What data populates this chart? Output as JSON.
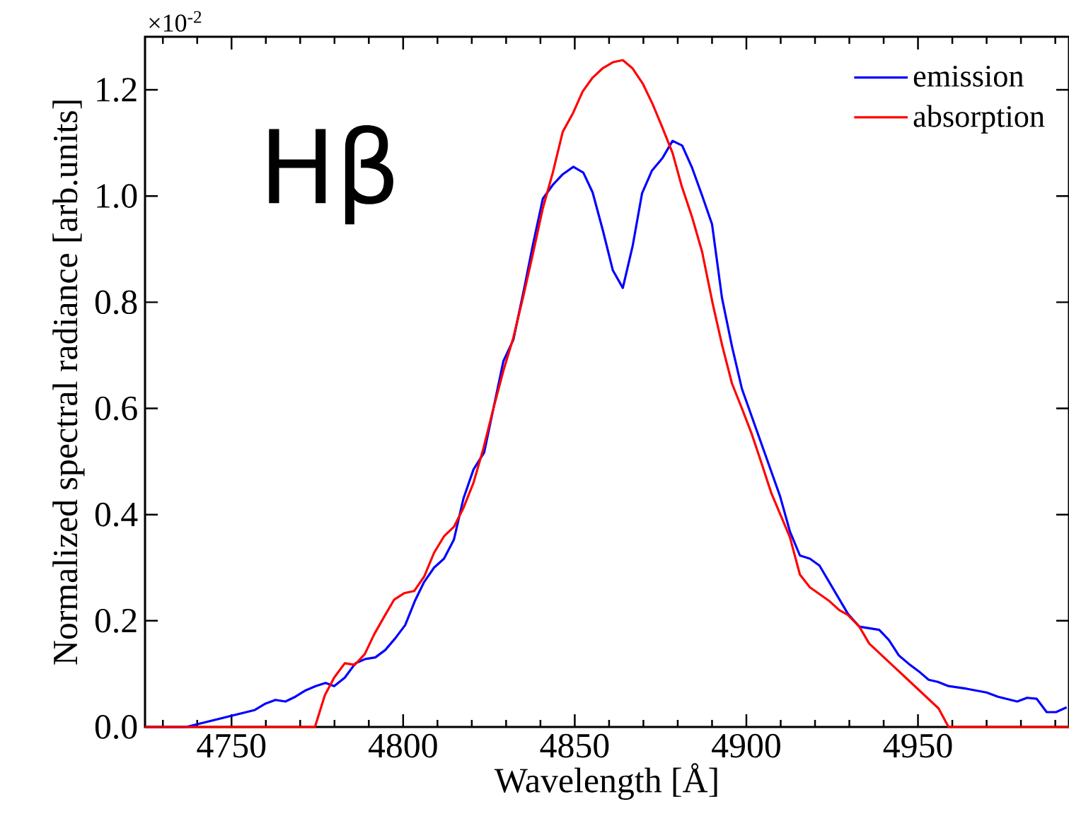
{
  "chart_data": {
    "type": "line",
    "xlabel": "Wavelength [Å]",
    "ylabel": "Normalized spectral radiance [arb.units]",
    "annotations": [
      "Hβ",
      "×10$^{-2}$"
    ],
    "xlim": [
      4724.8,
      4994
    ],
    "ylim": [
      0,
      1.3
    ],
    "xticks": [
      4750,
      4800,
      4850,
      4900,
      4950
    ],
    "yticks": [
      {
        "value": 0,
        "label": "0.0"
      },
      0.2,
      0.4,
      0.6,
      0.8,
      {
        "value": 1.0,
        "label": "1.0"
      },
      1.2
    ],
    "legend": "top right",
    "line_style": "solid",
    "grid": false,
    "series": [
      {
        "name": "emission",
        "color": "#0000ff",
        "x": [
          4724.8,
          4736.8,
          4756.8,
          4759.9,
          4762.8,
          4765.7,
          4768.6,
          4771.6,
          4774.5,
          4777.4,
          4779.9,
          4783,
          4786.1,
          4789,
          4791.9,
          4794.8,
          4797.7,
          4800.6,
          4803.4,
          4806.1,
          4809,
          4811.9,
          4814.8,
          4817.6,
          4820.5,
          4823.6,
          4829.2,
          4832.1,
          4835.2,
          4837.8,
          4840.7,
          4843.6,
          4846.5,
          4849.6,
          4852.5,
          4855.2,
          4858.2,
          4861.1,
          4864,
          4866.9,
          4869.6,
          4872.5,
          4875.6,
          4878.5,
          4881.3,
          4884.2,
          4887.1,
          4890,
          4892.9,
          4895.8,
          4898.7,
          4909.8,
          4912.7,
          4915.6,
          4918.5,
          4921.3,
          4929.6,
          4932.9,
          4938.7,
          4941.5,
          4944.4,
          4947.3,
          4950.2,
          4953.1,
          4955.8,
          4958.9,
          4964.2,
          4970,
          4973.3,
          4978.9,
          4981.8,
          4984.6,
          4987.5,
          4990.2,
          4993.3
        ],
        "values": [
          0,
          0,
          0.032,
          0.044,
          0.051,
          0.048,
          0.057,
          0.069,
          0.077,
          0.083,
          0.077,
          0.093,
          0.12,
          0.128,
          0.131,
          0.145,
          0.167,
          0.192,
          0.237,
          0.273,
          0.3,
          0.317,
          0.353,
          0.431,
          0.485,
          0.517,
          0.689,
          0.729,
          0.824,
          0.908,
          0.995,
          1.021,
          1.041,
          1.055,
          1.044,
          1.007,
          0.935,
          0.86,
          0.827,
          0.907,
          1.005,
          1.048,
          1.072,
          1.104,
          1.095,
          1.053,
          1.001,
          0.947,
          0.808,
          0.717,
          0.637,
          0.435,
          0.368,
          0.323,
          0.317,
          0.304,
          0.213,
          0.189,
          0.183,
          0.164,
          0.135,
          0.119,
          0.105,
          0.089,
          0.085,
          0.077,
          0.072,
          0.065,
          0.057,
          0.048,
          0.055,
          0.053,
          0.028,
          0.028,
          0.037
        ]
      },
      {
        "name": "absorption",
        "color": "#ff0000",
        "x": [
          4724.8,
          4774.3,
          4777.2,
          4779.9,
          4783,
          4785.9,
          4788.8,
          4791.6,
          4794.5,
          4797.4,
          4800.3,
          4803.2,
          4806.1,
          4809,
          4811.9,
          4814.8,
          4817.6,
          4820.5,
          4823.4,
          4826.3,
          4829.2,
          4832.1,
          4835,
          4837.8,
          4840.7,
          4843.6,
          4846.5,
          4849.4,
          4852.3,
          4855.2,
          4858.2,
          4861.1,
          4864,
          4866.9,
          4869.8,
          4872.7,
          4875.4,
          4878.5,
          4881.1,
          4884.2,
          4887.1,
          4890.2,
          4892.9,
          4895.8,
          4898.7,
          4901.5,
          4904.4,
          4907.3,
          4912.7,
          4915.6,
          4918.5,
          4924.2,
          4927.1,
          4929.6,
          4932.9,
          4935.8,
          4956,
          4958.9,
          4994
        ],
        "values": [
          0,
          0,
          0.06,
          0.093,
          0.12,
          0.117,
          0.137,
          0.175,
          0.208,
          0.24,
          0.252,
          0.256,
          0.283,
          0.328,
          0.359,
          0.377,
          0.413,
          0.46,
          0.525,
          0.6,
          0.671,
          0.733,
          0.811,
          0.891,
          0.977,
          1.044,
          1.121,
          1.155,
          1.197,
          1.223,
          1.241,
          1.252,
          1.256,
          1.24,
          1.212,
          1.173,
          1.131,
          1.081,
          1.02,
          0.96,
          0.895,
          0.797,
          0.72,
          0.647,
          0.6,
          0.553,
          0.497,
          0.44,
          0.357,
          0.287,
          0.263,
          0.237,
          0.22,
          0.211,
          0.189,
          0.157,
          0.035,
          0,
          0
        ]
      }
    ]
  }
}
